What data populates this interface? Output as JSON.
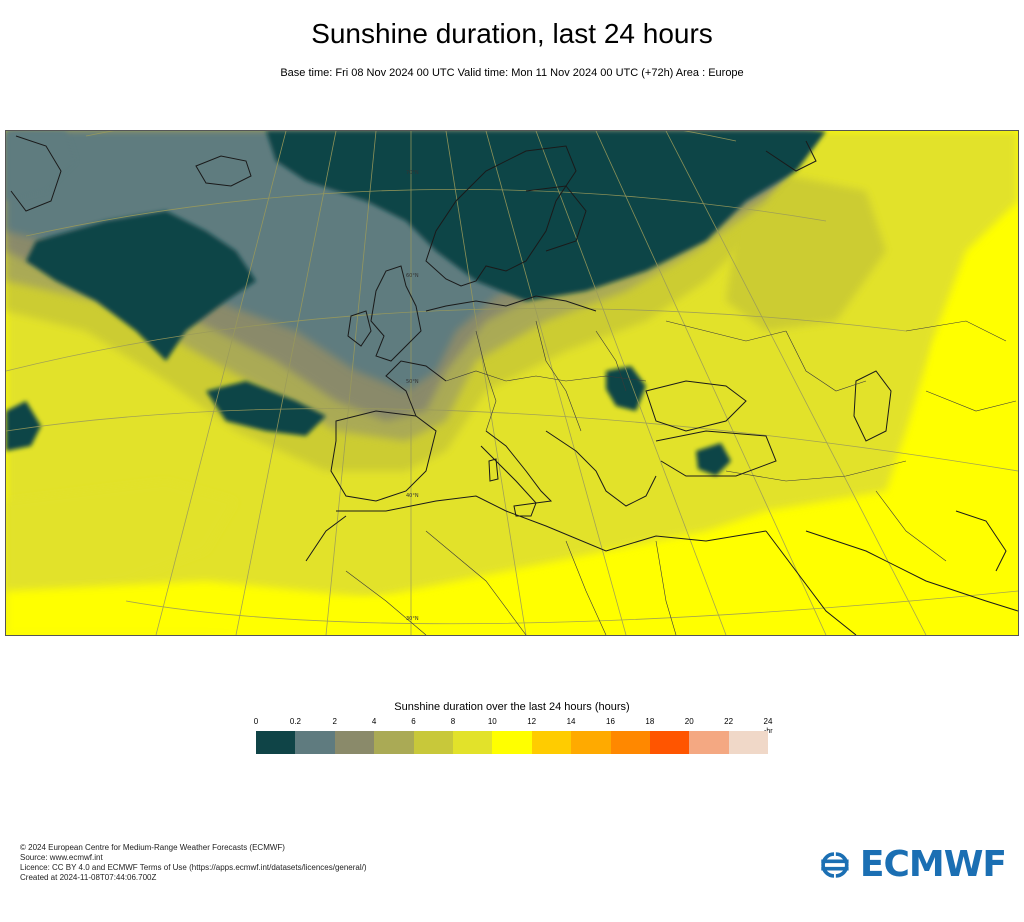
{
  "title": "Sunshine duration, last 24 hours",
  "subtitle": "Base time: Fri 08 Nov 2024 00 UTC Valid time: Mon 11 Nov 2024 00 UTC (+72h) Area : Europe",
  "map": {
    "area": "Europe",
    "variable": "Sunshine duration over the last 24 hours",
    "graticule_labels": [
      "70°N",
      "60°N",
      "50°N",
      "40°N",
      "30°N"
    ],
    "colors": {
      "cloudy": "#0f4447",
      "low": "#5f7b7f",
      "mid": "#8a8a6a",
      "moderate": "#aaaa55",
      "high": "#cccc33",
      "very_high": "#e2e22a",
      "full": "#ffff00",
      "coast": "#1a1a1a",
      "border": "#3a3a3a",
      "graticule": "#9a9a5a"
    }
  },
  "legend": {
    "title": "Sunshine duration over the last 24 hours (hours)",
    "unit": "hr",
    "ticks": [
      "0",
      "0.2",
      "2",
      "4",
      "6",
      "8",
      "10",
      "12",
      "14",
      "16",
      "18",
      "20",
      "22",
      "24"
    ],
    "colors": [
      "#0f4447",
      "#5f7b7f",
      "#8a8a6a",
      "#aaaa55",
      "#c8c83a",
      "#e2e22a",
      "#ffff00",
      "#ffcc00",
      "#ffaa00",
      "#ff8800",
      "#ff5500",
      "#f4a882",
      "#f0d8c8"
    ]
  },
  "footer": {
    "lines": [
      "© 2024 European Centre for Medium-Range Weather Forecasts (ECMWF)",
      "Source: www.ecmwf.int",
      "Licence: CC BY 4.0 and ECMWF Terms of Use (https://apps.ecmwf.int/datasets/licences/general/)",
      "Created at 2024-11-08T07:44:06.700Z"
    ]
  },
  "logo": {
    "text": "ECMWF",
    "color": "#1b6fb3"
  }
}
